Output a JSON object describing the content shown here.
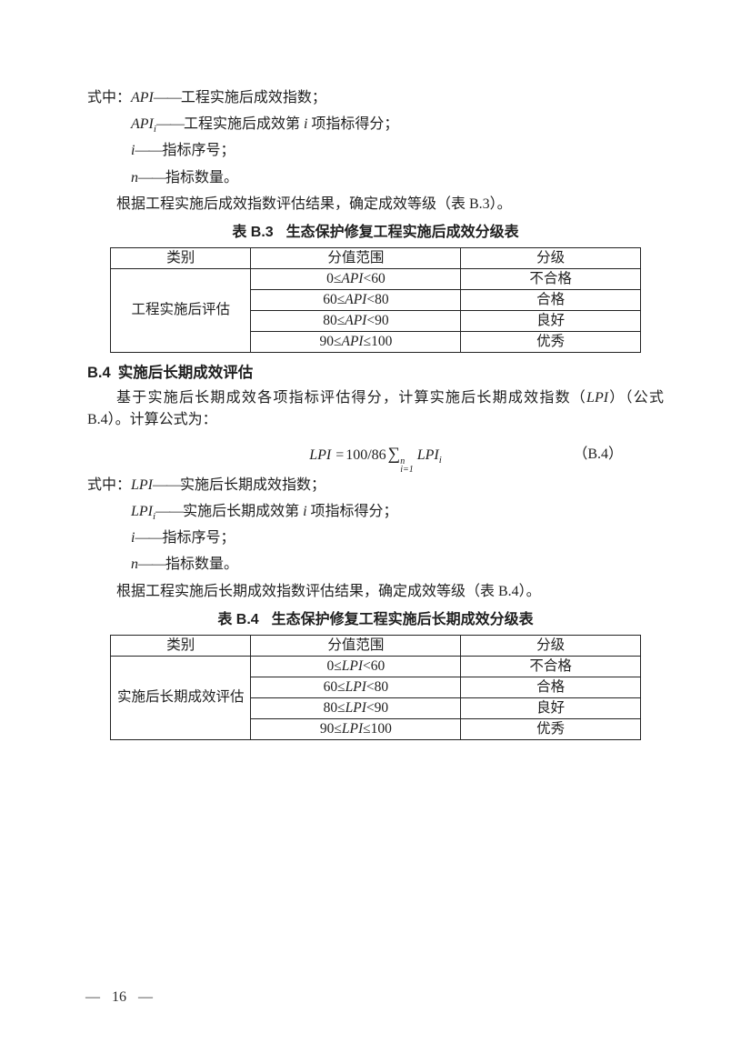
{
  "b3_legend": {
    "prefix": "式中：",
    "items": [
      {
        "symbol": "API",
        "symbol_sub": "",
        "dash": "——",
        "desc_pre": "工程实施后成效指数；",
        "desc_var": "",
        "desc_post": ""
      },
      {
        "symbol": "API",
        "symbol_sub": "i",
        "dash": "——",
        "desc_pre": "工程实施后成效第 ",
        "desc_var": "i",
        "desc_post": " 项指标得分；"
      },
      {
        "symbol": "i",
        "symbol_sub": "",
        "dash": "——",
        "desc_pre": "指标序号；",
        "desc_var": "",
        "desc_post": ""
      },
      {
        "symbol": "n",
        "symbol_sub": "",
        "dash": "——",
        "desc_pre": "指标数量。",
        "desc_var": "",
        "desc_post": ""
      }
    ],
    "note": "根据工程实施后成效指数评估结果，确定成效等级（表 B.3）。"
  },
  "table_b3": {
    "caption_label": "表 B.3",
    "caption_title": "生态保护修复工程实施后成效分级表",
    "headers": [
      "类别",
      "分值范围",
      "分级"
    ],
    "category": "工程实施后评估",
    "rows": [
      {
        "range_pre": "0≤",
        "range_var": "API",
        "range_post": "<60",
        "grade": "不合格"
      },
      {
        "range_pre": "60≤",
        "range_var": "API",
        "range_post": "<80",
        "grade": "合格"
      },
      {
        "range_pre": "80≤",
        "range_var": "API",
        "range_post": "<90",
        "grade": "良好"
      },
      {
        "range_pre": "90≤",
        "range_var": "API",
        "range_post": "≤100",
        "grade": "优秀"
      }
    ]
  },
  "section_b4": {
    "heading_label": "B.4",
    "heading_title": "实施后长期成效评估",
    "para_pre": "基于实施后长期成效各项指标评估得分，计算实施后长期成效指数（",
    "para_var": "LPI",
    "para_post": "）（公式 B.4）。计算公式为：",
    "formula": {
      "lhs": "LPI",
      "eq": "=",
      "coef": "100/86",
      "sum": "∑",
      "sum_sup": "n",
      "sum_sub": "i=1",
      "term": "LPI",
      "term_sub": "i",
      "tag": "（B.4）"
    }
  },
  "b4_legend": {
    "prefix": "式中：",
    "items": [
      {
        "symbol": "LPI",
        "symbol_sub": "",
        "dash": "——",
        "desc_pre": "实施后长期成效指数；",
        "desc_var": "",
        "desc_post": ""
      },
      {
        "symbol": "LPI",
        "symbol_sub": "i",
        "dash": "——",
        "desc_pre": "实施后长期成效第 ",
        "desc_var": "i",
        "desc_post": " 项指标得分；"
      },
      {
        "symbol": "i",
        "symbol_sub": "",
        "dash": "——",
        "desc_pre": "指标序号；",
        "desc_var": "",
        "desc_post": ""
      },
      {
        "symbol": "n",
        "symbol_sub": "",
        "dash": "——",
        "desc_pre": "指标数量。",
        "desc_var": "",
        "desc_post": ""
      }
    ],
    "note": "根据工程实施后长期成效指数评估结果，确定成效等级（表 B.4）。"
  },
  "table_b4": {
    "caption_label": "表 B.4",
    "caption_title": "生态保护修复工程实施后长期成效分级表",
    "headers": [
      "类别",
      "分值范围",
      "分级"
    ],
    "category": "实施后长期成效评估",
    "rows": [
      {
        "range_pre": "0≤",
        "range_var": "LPI",
        "range_post": "<60",
        "grade": "不合格"
      },
      {
        "range_pre": "60≤",
        "range_var": "LPI",
        "range_post": "<80",
        "grade": "合格"
      },
      {
        "range_pre": "80≤",
        "range_var": "LPI",
        "range_post": "<90",
        "grade": "良好"
      },
      {
        "range_pre": "90≤",
        "range_var": "LPI",
        "range_post": "≤100",
        "grade": "优秀"
      }
    ]
  },
  "page_footer": {
    "left_dash": "—",
    "page_number": "16",
    "right_dash": "—"
  }
}
